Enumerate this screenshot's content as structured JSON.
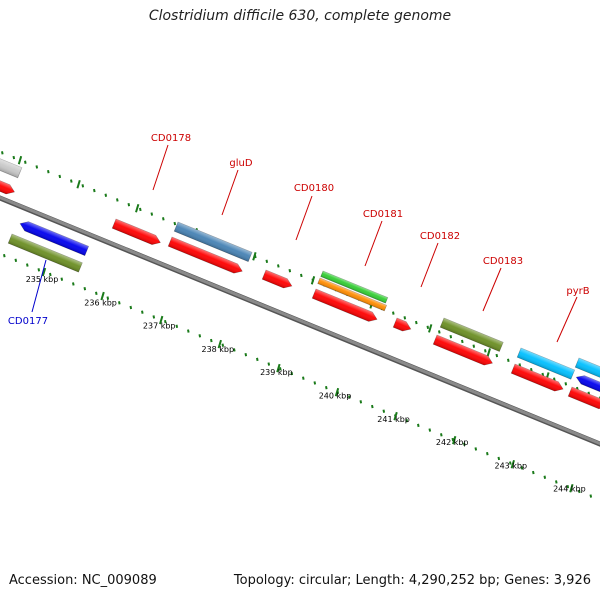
{
  "title": "Clostridium difficile 630, complete genome",
  "footer": {
    "accession": "Accession: NC_009089",
    "summary": "Topology: circular; Length: 4,290,252 bp; Genes: 3,926"
  },
  "colors": {
    "label_red": "#cc0000",
    "label_blue": "#0000cc",
    "tick_green": "#1a7a1a",
    "backbone": "#8a8a8a",
    "cds_red": "#ff0000",
    "blue": "#0000ee",
    "steel_blue": "#4682b4",
    "olive": "#6b8e23",
    "green": "#32cd32",
    "orange": "#ff8c00",
    "cyan": "#00bfff",
    "grey": "#c8c8c8"
  },
  "scale_labels": [
    "235 kbp",
    "236 kbp",
    "237 kbp",
    "238 kbp",
    "239 kbp",
    "240 kbp",
    "241 kbp",
    "242 kbp",
    "243 kbp",
    "244 kbp"
  ],
  "gene_labels": [
    {
      "name": "CD0177",
      "color": "label_blue"
    },
    {
      "name": "CD0178",
      "color": "label_red"
    },
    {
      "name": "gluD",
      "color": "label_red"
    },
    {
      "name": "CD0180",
      "color": "label_red"
    },
    {
      "name": "CD0181",
      "color": "label_red"
    },
    {
      "name": "CD0182",
      "color": "label_red"
    },
    {
      "name": "CD0183",
      "color": "label_red"
    },
    {
      "name": "pyrB",
      "color": "label_red"
    }
  ]
}
